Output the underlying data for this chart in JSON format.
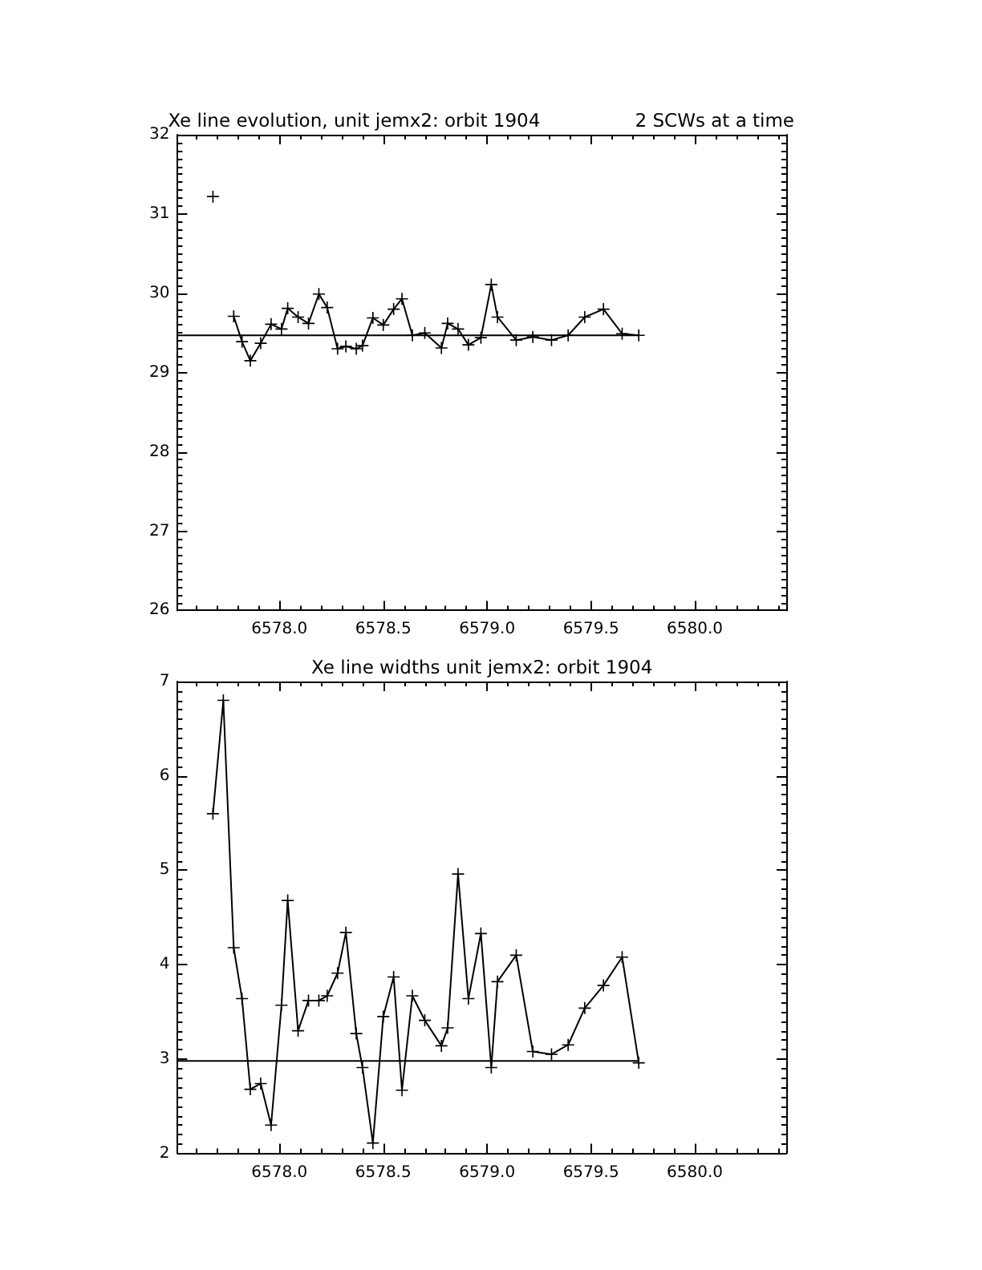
{
  "chart_data": [
    {
      "type": "line",
      "title": "Xe line evolution, unit jemx2: orbit 1904",
      "subtitle": "2 SCWs at a time",
      "xlim": [
        6577.51,
        6580.44
      ],
      "xticks": [
        {
          "value": 6578,
          "label": "6578.0"
        },
        {
          "value": 6578.5,
          "label": "6578.5"
        },
        {
          "value": 6579,
          "label": "6579.0"
        },
        {
          "value": 6579.5,
          "label": "6579.5"
        },
        {
          "value": 6580,
          "label": "6580.0"
        }
      ],
      "ylim": [
        26,
        32
      ],
      "yticks": [
        26,
        27,
        28,
        29,
        30,
        31,
        32
      ],
      "grid": false,
      "marker": "cross",
      "line_style": "solid",
      "x": [
        6577.68,
        6577.73,
        6577.78,
        6577.82,
        6577.86,
        6577.91,
        6577.96,
        6578.01,
        6578.04,
        6578.09,
        6578.14,
        6578.19,
        6578.23,
        6578.28,
        6578.32,
        6578.37,
        6578.4,
        6578.45,
        6578.5,
        6578.55,
        6578.59,
        6578.64,
        6578.7,
        6578.78,
        6578.81,
        6578.86,
        6578.91,
        6578.97,
        6579.02,
        6579.05,
        6579.14,
        6579.22,
        6579.31,
        6579.39,
        6579.47,
        6579.56,
        6579.65,
        6579.73
      ],
      "series": [
        {
          "color": "#000000",
          "values": [
            31.22,
            null,
            29.71,
            29.39,
            29.15,
            29.37,
            29.61,
            29.55,
            29.81,
            29.7,
            29.62,
            29.99,
            29.82,
            29.3,
            29.33,
            29.3,
            29.34,
            29.69,
            29.6,
            29.8,
            29.93,
            29.47,
            29.5,
            29.31,
            29.62,
            29.55,
            29.35,
            29.44,
            30.11,
            29.7,
            29.41,
            29.45,
            29.41,
            29.47,
            29.7,
            29.8,
            29.49,
            29.47
          ]
        }
      ],
      "ref_lines": [
        {
          "axis": "y",
          "value": 29.47,
          "color": "#000000"
        }
      ]
    },
    {
      "type": "line",
      "title": "Xe line widths unit jemx2: orbit 1904",
      "xlim": [
        6577.51,
        6580.44
      ],
      "xticks": [
        {
          "value": 6578,
          "label": "6578.0"
        },
        {
          "value": 6578.5,
          "label": "6578.5"
        },
        {
          "value": 6579,
          "label": "6579.0"
        },
        {
          "value": 6579.5,
          "label": "6579.5"
        },
        {
          "value": 6580,
          "label": "6580.0"
        }
      ],
      "ylim": [
        2,
        7
      ],
      "yticks": [
        2,
        3,
        4,
        5,
        6,
        7
      ],
      "grid": false,
      "marker": "cross",
      "line_style": "solid",
      "x": [
        6577.68,
        6577.73,
        6577.78,
        6577.82,
        6577.86,
        6577.91,
        6577.96,
        6578.01,
        6578.04,
        6578.09,
        6578.14,
        6578.19,
        6578.23,
        6578.28,
        6578.32,
        6578.37,
        6578.4,
        6578.45,
        6578.5,
        6578.55,
        6578.59,
        6578.64,
        6578.7,
        6578.78,
        6578.81,
        6578.86,
        6578.91,
        6578.97,
        6579.02,
        6579.05,
        6579.14,
        6579.22,
        6579.31,
        6579.39,
        6579.47,
        6579.56,
        6579.65,
        6579.73
      ],
      "series": [
        {
          "color": "#000000",
          "values": [
            5.6,
            6.8,
            4.18,
            3.64,
            2.68,
            2.74,
            2.3,
            3.57,
            4.68,
            3.3,
            3.62,
            3.62,
            3.67,
            3.91,
            4.34,
            3.27,
            2.91,
            2.11,
            3.45,
            3.87,
            2.67,
            3.67,
            3.41,
            3.14,
            3.33,
            4.96,
            3.64,
            4.33,
            2.91,
            3.82,
            4.1,
            3.08,
            3.05,
            3.15,
            3.54,
            3.78,
            4.08,
            2.96
          ]
        }
      ],
      "ref_lines": [
        {
          "axis": "y",
          "value": 2.98,
          "color": "#000000"
        }
      ]
    }
  ]
}
